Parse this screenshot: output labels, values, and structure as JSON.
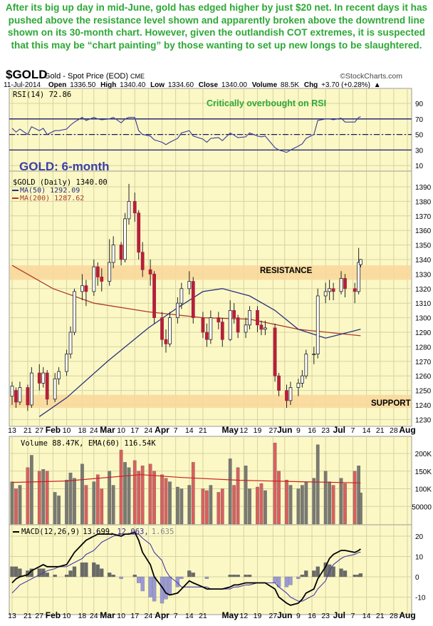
{
  "commentary": "After its big up day in mid-June, gold has edged higher by just $20 net. In recent days it has pushed above the resistance level shown and apparently broken above the downtrend line shown on its 30-month chart. However, given the outlandish COT extremes, it is suspected that this may be “chart painting” by those wanting to set up new longs to be slaughtered.",
  "header": {
    "symbol": "$GOLD",
    "name": "Gold - Spot Price (EOD)",
    "exchange": "CME",
    "credit": "©StockCharts.com",
    "date": "11-Jul-2014",
    "open_label": "Open",
    "open": "1336.50",
    "high_label": "High",
    "high": "1340.40",
    "low_label": "Low",
    "low": "1334.60",
    "close_label": "Close",
    "close": "1340.00",
    "volume_label": "Volume",
    "volume": "88.5K",
    "chg_label": "Chg",
    "chg": "+3.70 (+0.28%)",
    "chg_icon": "triangle-up-icon"
  },
  "colors": {
    "panel_bg": "#fbf8c6",
    "grid": "#d6d3a0",
    "up": "#ffffff",
    "down": "#b3203a",
    "volume_up": "#7a7a72",
    "volume_down": "#d9605e",
    "ma50": "#2a2f80",
    "ma200": "#b03a2a",
    "rsi": "#3a3a9a",
    "band": "#f9d79a",
    "annotation": "#2ea836",
    "title": "#3b3fa8"
  },
  "chart_data": {
    "type": "candlestick",
    "title": "GOLD: 6-month",
    "annotations": {
      "rsi": "Critically overbought on RSI",
      "resistance": "RESISTANCE",
      "support": "SUPPORT"
    },
    "resistance_band": [
      1326,
      1336
    ],
    "support_band": [
      1238,
      1247
    ],
    "price_axis": {
      "ylim": [
        1225,
        1397
      ],
      "ticks": [
        1230,
        1240,
        1250,
        1260,
        1270,
        1280,
        1290,
        1300,
        1310,
        1320,
        1330,
        1340,
        1350,
        1360,
        1370,
        1380,
        1390
      ]
    },
    "rsi_axis": {
      "ylim": [
        0,
        100
      ],
      "ticks": [
        10,
        30,
        50,
        70,
        90
      ],
      "lines": [
        30,
        50,
        70
      ]
    },
    "volume_axis": {
      "ylim": [
        0,
        250
      ],
      "ticks": [
        "50000",
        "100K",
        "150K",
        "200K"
      ],
      "tick_values": [
        50,
        100,
        150,
        200
      ]
    },
    "macd_axis": {
      "ylim": [
        -16,
        26
      ],
      "ticks": [
        -10,
        0,
        10,
        20
      ]
    },
    "x_range": [
      "2014-01-13",
      "2014-08-04"
    ],
    "x_ticks": [
      {
        "date": "2014-01-13",
        "label": "13"
      },
      {
        "date": "2014-01-21",
        "label": "21"
      },
      {
        "date": "2014-01-27",
        "label": "27"
      },
      {
        "date": "2014-02-03",
        "label": "Feb",
        "bold": true
      },
      {
        "date": "2014-02-10",
        "label": "10"
      },
      {
        "date": "2014-02-18",
        "label": "18"
      },
      {
        "date": "2014-02-24",
        "label": "24"
      },
      {
        "date": "2014-03-03",
        "label": "Mar",
        "bold": true
      },
      {
        "date": "2014-03-10",
        "label": "10"
      },
      {
        "date": "2014-03-17",
        "label": "17"
      },
      {
        "date": "2014-03-24",
        "label": "24"
      },
      {
        "date": "2014-03-31",
        "label": "Apr",
        "bold": true
      },
      {
        "date": "2014-04-07",
        "label": "7"
      },
      {
        "date": "2014-04-14",
        "label": "14"
      },
      {
        "date": "2014-04-21",
        "label": "21"
      },
      {
        "date": "2014-05-05",
        "label": "May",
        "bold": true
      },
      {
        "date": "2014-05-12",
        "label": "12"
      },
      {
        "date": "2014-05-19",
        "label": "19"
      },
      {
        "date": "2014-05-27",
        "label": "27"
      },
      {
        "date": "2014-06-02",
        "label": "Jun",
        "bold": true
      },
      {
        "date": "2014-06-09",
        "label": "9"
      },
      {
        "date": "2014-06-16",
        "label": "16"
      },
      {
        "date": "2014-06-23",
        "label": "23"
      },
      {
        "date": "2014-06-30",
        "label": "Jul",
        "bold": true
      },
      {
        "date": "2014-07-07",
        "label": "7"
      },
      {
        "date": "2014-07-14",
        "label": "14"
      },
      {
        "date": "2014-07-21",
        "label": "21"
      },
      {
        "date": "2014-07-28",
        "label": "28"
      },
      {
        "date": "2014-08-04",
        "label": "Aug",
        "bold": true
      }
    ],
    "legend": {
      "rsi": "RSI(14) 72.86",
      "price": "$GOLD (Daily) 1340.00",
      "ma50": "MA(50) 1292.09",
      "ma200": "MA(200) 1287.62",
      "volume": "Volume 88.47K, EMA(60) 116.54K",
      "macd_name": "MACD(12,26,9)",
      "macd_value": "13.699,",
      "macd_signal": "12.063,",
      "macd_hist": "1.635"
    },
    "candle_fields": [
      "date",
      "open",
      "high",
      "low",
      "close",
      "volume_k",
      "rsi",
      "macd",
      "signal"
    ],
    "candles": [
      [
        "2014-01-13",
        1246,
        1256,
        1240,
        1253,
        120,
        58,
        -3,
        -8
      ],
      [
        "2014-01-15",
        1250,
        1252,
        1238,
        1242,
        100,
        53,
        -1,
        -6
      ],
      [
        "2014-01-17",
        1242,
        1256,
        1240,
        1252,
        110,
        57,
        0,
        -4
      ],
      [
        "2014-01-21",
        1252,
        1254,
        1236,
        1240,
        160,
        50,
        1,
        -2
      ],
      [
        "2014-01-23",
        1240,
        1266,
        1238,
        1262,
        195,
        60,
        3,
        -1
      ],
      [
        "2014-01-27",
        1262,
        1268,
        1250,
        1255,
        150,
        55,
        5,
        1
      ],
      [
        "2014-01-29",
        1255,
        1266,
        1252,
        1262,
        155,
        58,
        6,
        2
      ],
      [
        "2014-01-31",
        1262,
        1264,
        1240,
        1244,
        150,
        50,
        5,
        3
      ],
      [
        "2014-02-04",
        1244,
        1262,
        1242,
        1258,
        90,
        55,
        5,
        4
      ],
      [
        "2014-02-06",
        1258,
        1266,
        1254,
        1263,
        80,
        55,
        5,
        5
      ],
      [
        "2014-02-10",
        1263,
        1278,
        1260,
        1275,
        125,
        57,
        6,
        5
      ],
      [
        "2014-02-12",
        1275,
        1294,
        1272,
        1290,
        145,
        62,
        9,
        6
      ],
      [
        "2014-02-14",
        1290,
        1320,
        1288,
        1318,
        130,
        66,
        12,
        7
      ],
      [
        "2014-02-18",
        1318,
        1330,
        1312,
        1322,
        170,
        72,
        16,
        9
      ],
      [
        "2014-02-20",
        1322,
        1326,
        1308,
        1318,
        110,
        68,
        18,
        11
      ],
      [
        "2014-02-24",
        1318,
        1340,
        1315,
        1335,
        120,
        72,
        20,
        13
      ],
      [
        "2014-02-26",
        1335,
        1338,
        1322,
        1328,
        140,
        70,
        21,
        15
      ],
      [
        "2014-02-28",
        1328,
        1334,
        1318,
        1325,
        100,
        69,
        21,
        17
      ],
      [
        "2014-03-04",
        1325,
        1354,
        1322,
        1338,
        150,
        70,
        21,
        19
      ],
      [
        "2014-03-06",
        1338,
        1356,
        1334,
        1350,
        110,
        72,
        21,
        20
      ],
      [
        "2014-03-10",
        1350,
        1352,
        1336,
        1340,
        210,
        65,
        20,
        21
      ],
      [
        "2014-03-12",
        1340,
        1372,
        1338,
        1368,
        175,
        70,
        21,
        21
      ],
      [
        "2014-03-14",
        1368,
        1392,
        1364,
        1380,
        160,
        72,
        21,
        21
      ],
      [
        "2014-03-17",
        1380,
        1386,
        1366,
        1372,
        180,
        72,
        22,
        21
      ],
      [
        "2014-03-19",
        1372,
        1374,
        1340,
        1345,
        150,
        55,
        18,
        21
      ],
      [
        "2014-03-21",
        1345,
        1352,
        1328,
        1333,
        165,
        50,
        12,
        19
      ],
      [
        "2014-03-25",
        1333,
        1340,
        1322,
        1330,
        170,
        48,
        6,
        16
      ],
      [
        "2014-03-27",
        1330,
        1332,
        1296,
        1300,
        150,
        43,
        0,
        12
      ],
      [
        "2014-03-31",
        1300,
        1304,
        1280,
        1285,
        140,
        40,
        -5,
        8
      ],
      [
        "2014-04-02",
        1285,
        1292,
        1276,
        1282,
        130,
        37,
        -8,
        3
      ],
      [
        "2014-04-04",
        1282,
        1304,
        1280,
        1300,
        120,
        40,
        -9,
        0
      ],
      [
        "2014-04-08",
        1300,
        1314,
        1296,
        1310,
        105,
        45,
        -8,
        -3
      ],
      [
        "2014-04-10",
        1310,
        1324,
        1306,
        1320,
        100,
        52,
        -6,
        -5
      ],
      [
        "2014-04-14",
        1320,
        1332,
        1316,
        1325,
        110,
        55,
        -2,
        -5
      ],
      [
        "2014-04-16",
        1325,
        1328,
        1296,
        1300,
        175,
        48,
        -3,
        -5
      ],
      [
        "2014-04-21",
        1300,
        1304,
        1286,
        1290,
        100,
        44,
        -5,
        -5
      ],
      [
        "2014-04-23",
        1290,
        1296,
        1280,
        1285,
        95,
        40,
        -6,
        -5
      ],
      [
        "2014-04-25",
        1285,
        1305,
        1282,
        1300,
        110,
        45,
        -6,
        -6
      ],
      [
        "2014-04-29",
        1300,
        1304,
        1292,
        1297,
        90,
        46,
        -6,
        -6
      ],
      [
        "2014-05-01",
        1297,
        1300,
        1280,
        1285,
        100,
        42,
        -6,
        -6
      ],
      [
        "2014-05-05",
        1285,
        1312,
        1284,
        1305,
        185,
        52,
        -5,
        -6
      ],
      [
        "2014-05-07",
        1305,
        1310,
        1296,
        1300,
        110,
        49,
        -4,
        -5
      ],
      [
        "2014-05-09",
        1300,
        1302,
        1286,
        1290,
        160,
        46,
        -4,
        -5
      ],
      [
        "2014-05-13",
        1290,
        1300,
        1286,
        1295,
        165,
        47,
        -3,
        -4
      ],
      [
        "2014-05-15",
        1295,
        1308,
        1292,
        1305,
        100,
        52,
        -3,
        -4
      ],
      [
        "2014-05-19",
        1305,
        1308,
        1290,
        1295,
        105,
        48,
        -3,
        -3
      ],
      [
        "2014-05-21",
        1295,
        1298,
        1288,
        1292,
        115,
        47,
        -3,
        -3
      ],
      [
        "2014-05-23",
        1292,
        1298,
        1288,
        1293,
        95,
        48,
        -3,
        -3
      ],
      [
        "2014-05-28",
        1293,
        1296,
        1256,
        1260,
        230,
        33,
        -6,
        -3
      ],
      [
        "2014-05-30",
        1260,
        1262,
        1246,
        1250,
        150,
        30,
        -10,
        -5
      ],
      [
        "2014-06-03",
        1250,
        1254,
        1238,
        1243,
        125,
        27,
        -13,
        -8
      ],
      [
        "2014-06-05",
        1243,
        1256,
        1240,
        1252,
        110,
        30,
        -14,
        -10
      ],
      [
        "2014-06-09",
        1252,
        1258,
        1246,
        1255,
        100,
        35,
        -13,
        -12
      ],
      [
        "2014-06-11",
        1255,
        1264,
        1252,
        1260,
        110,
        38,
        -11,
        -12
      ],
      [
        "2014-06-13",
        1260,
        1278,
        1258,
        1275,
        120,
        45,
        -8,
        -11
      ],
      [
        "2014-06-17",
        1275,
        1280,
        1268,
        1275,
        130,
        50,
        -6,
        -9
      ],
      [
        "2014-06-19",
        1275,
        1320,
        1272,
        1315,
        225,
        68,
        -1,
        -6
      ],
      [
        "2014-06-23",
        1315,
        1324,
        1310,
        1318,
        150,
        70,
        5,
        -2
      ],
      [
        "2014-06-25",
        1318,
        1326,
        1312,
        1320,
        120,
        70,
        9,
        3
      ],
      [
        "2014-06-27",
        1320,
        1324,
        1312,
        1318,
        110,
        69,
        11,
        6
      ],
      [
        "2014-07-01",
        1318,
        1332,
        1316,
        1327,
        130,
        71,
        13,
        9
      ],
      [
        "2014-07-03",
        1327,
        1330,
        1314,
        1320,
        115,
        66,
        13,
        10
      ],
      [
        "2014-07-08",
        1320,
        1324,
        1310,
        1318,
        150,
        66,
        12,
        11
      ],
      [
        "2014-07-10",
        1318,
        1348,
        1316,
        1338,
        165,
        72,
        13,
        12
      ],
      [
        "2014-07-11",
        1336.5,
        1340.4,
        1334.6,
        1340,
        88.47,
        72.86,
        13.699,
        12.063
      ]
    ],
    "ma50": [
      [
        "2014-01-27",
        1232
      ],
      [
        "2014-02-10",
        1245
      ],
      [
        "2014-03-03",
        1270
      ],
      [
        "2014-03-24",
        1293
      ],
      [
        "2014-04-07",
        1306
      ],
      [
        "2014-04-21",
        1318
      ],
      [
        "2014-05-01",
        1320
      ],
      [
        "2014-05-15",
        1315
      ],
      [
        "2014-05-28",
        1305
      ],
      [
        "2014-06-09",
        1292
      ],
      [
        "2014-06-23",
        1286
      ],
      [
        "2014-07-11",
        1292.09
      ]
    ],
    "ma200": [
      [
        "2014-01-13",
        1336
      ],
      [
        "2014-02-03",
        1320
      ],
      [
        "2014-02-24",
        1310
      ],
      [
        "2014-03-24",
        1304
      ],
      [
        "2014-04-21",
        1300
      ],
      [
        "2014-05-15",
        1299
      ],
      [
        "2014-06-09",
        1292
      ],
      [
        "2014-07-11",
        1287.62
      ]
    ],
    "volume_ema": [
      [
        "2014-01-13",
        118
      ],
      [
        "2014-02-10",
        122
      ],
      [
        "2014-03-20",
        140
      ],
      [
        "2014-04-10",
        132
      ],
      [
        "2014-05-10",
        124
      ],
      [
        "2014-06-10",
        120
      ],
      [
        "2014-07-11",
        116.54
      ]
    ]
  }
}
